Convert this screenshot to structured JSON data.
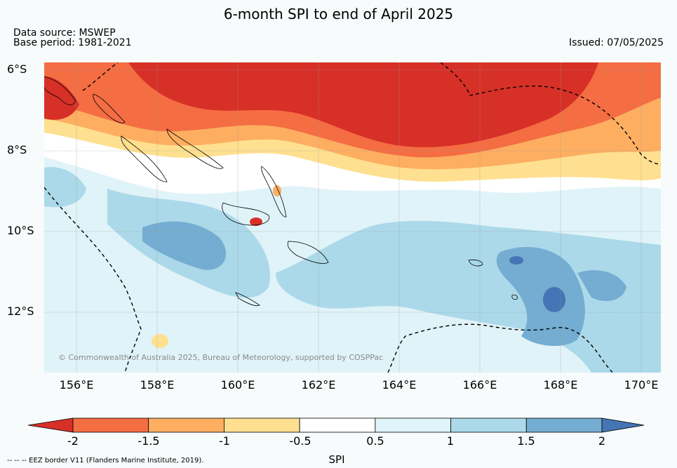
{
  "title": "6-month SPI to end of April 2025",
  "data_source": "Data source: MSWEP",
  "base_period": "Base period: 1981-2021",
  "issued": "Issued: 07/05/2025",
  "copyright": "© Commonwealth of Australia 2025, Bureau of Meteorology, supported by COSPPac",
  "lat_labels": [
    "6°S",
    "8°S",
    "10°S",
    "12°S"
  ],
  "lon_labels": [
    "156°E",
    "158°E",
    "160°E",
    "162°E",
    "164°E",
    "166°E",
    "168°E",
    "170°E"
  ],
  "colorbar": {
    "label": "SPI",
    "ticks": [
      "-2",
      "-1.5",
      "-1",
      "-0.5",
      "0.5",
      "1",
      "1.5",
      "2"
    ],
    "colors": [
      "#d73027",
      "#f46d43",
      "#fdae61",
      "#fee090",
      "#ffffff",
      "#e0f3f8",
      "#abd9e9",
      "#74add1",
      "#4575b4"
    ]
  },
  "eez_note": "--  --  -- EEZ border V11 (Flanders Marine Institute, 2019).",
  "extent": {
    "lon": [
      155.2,
      170.5
    ],
    "lat": [
      -5.8,
      -13.5
    ]
  }
}
